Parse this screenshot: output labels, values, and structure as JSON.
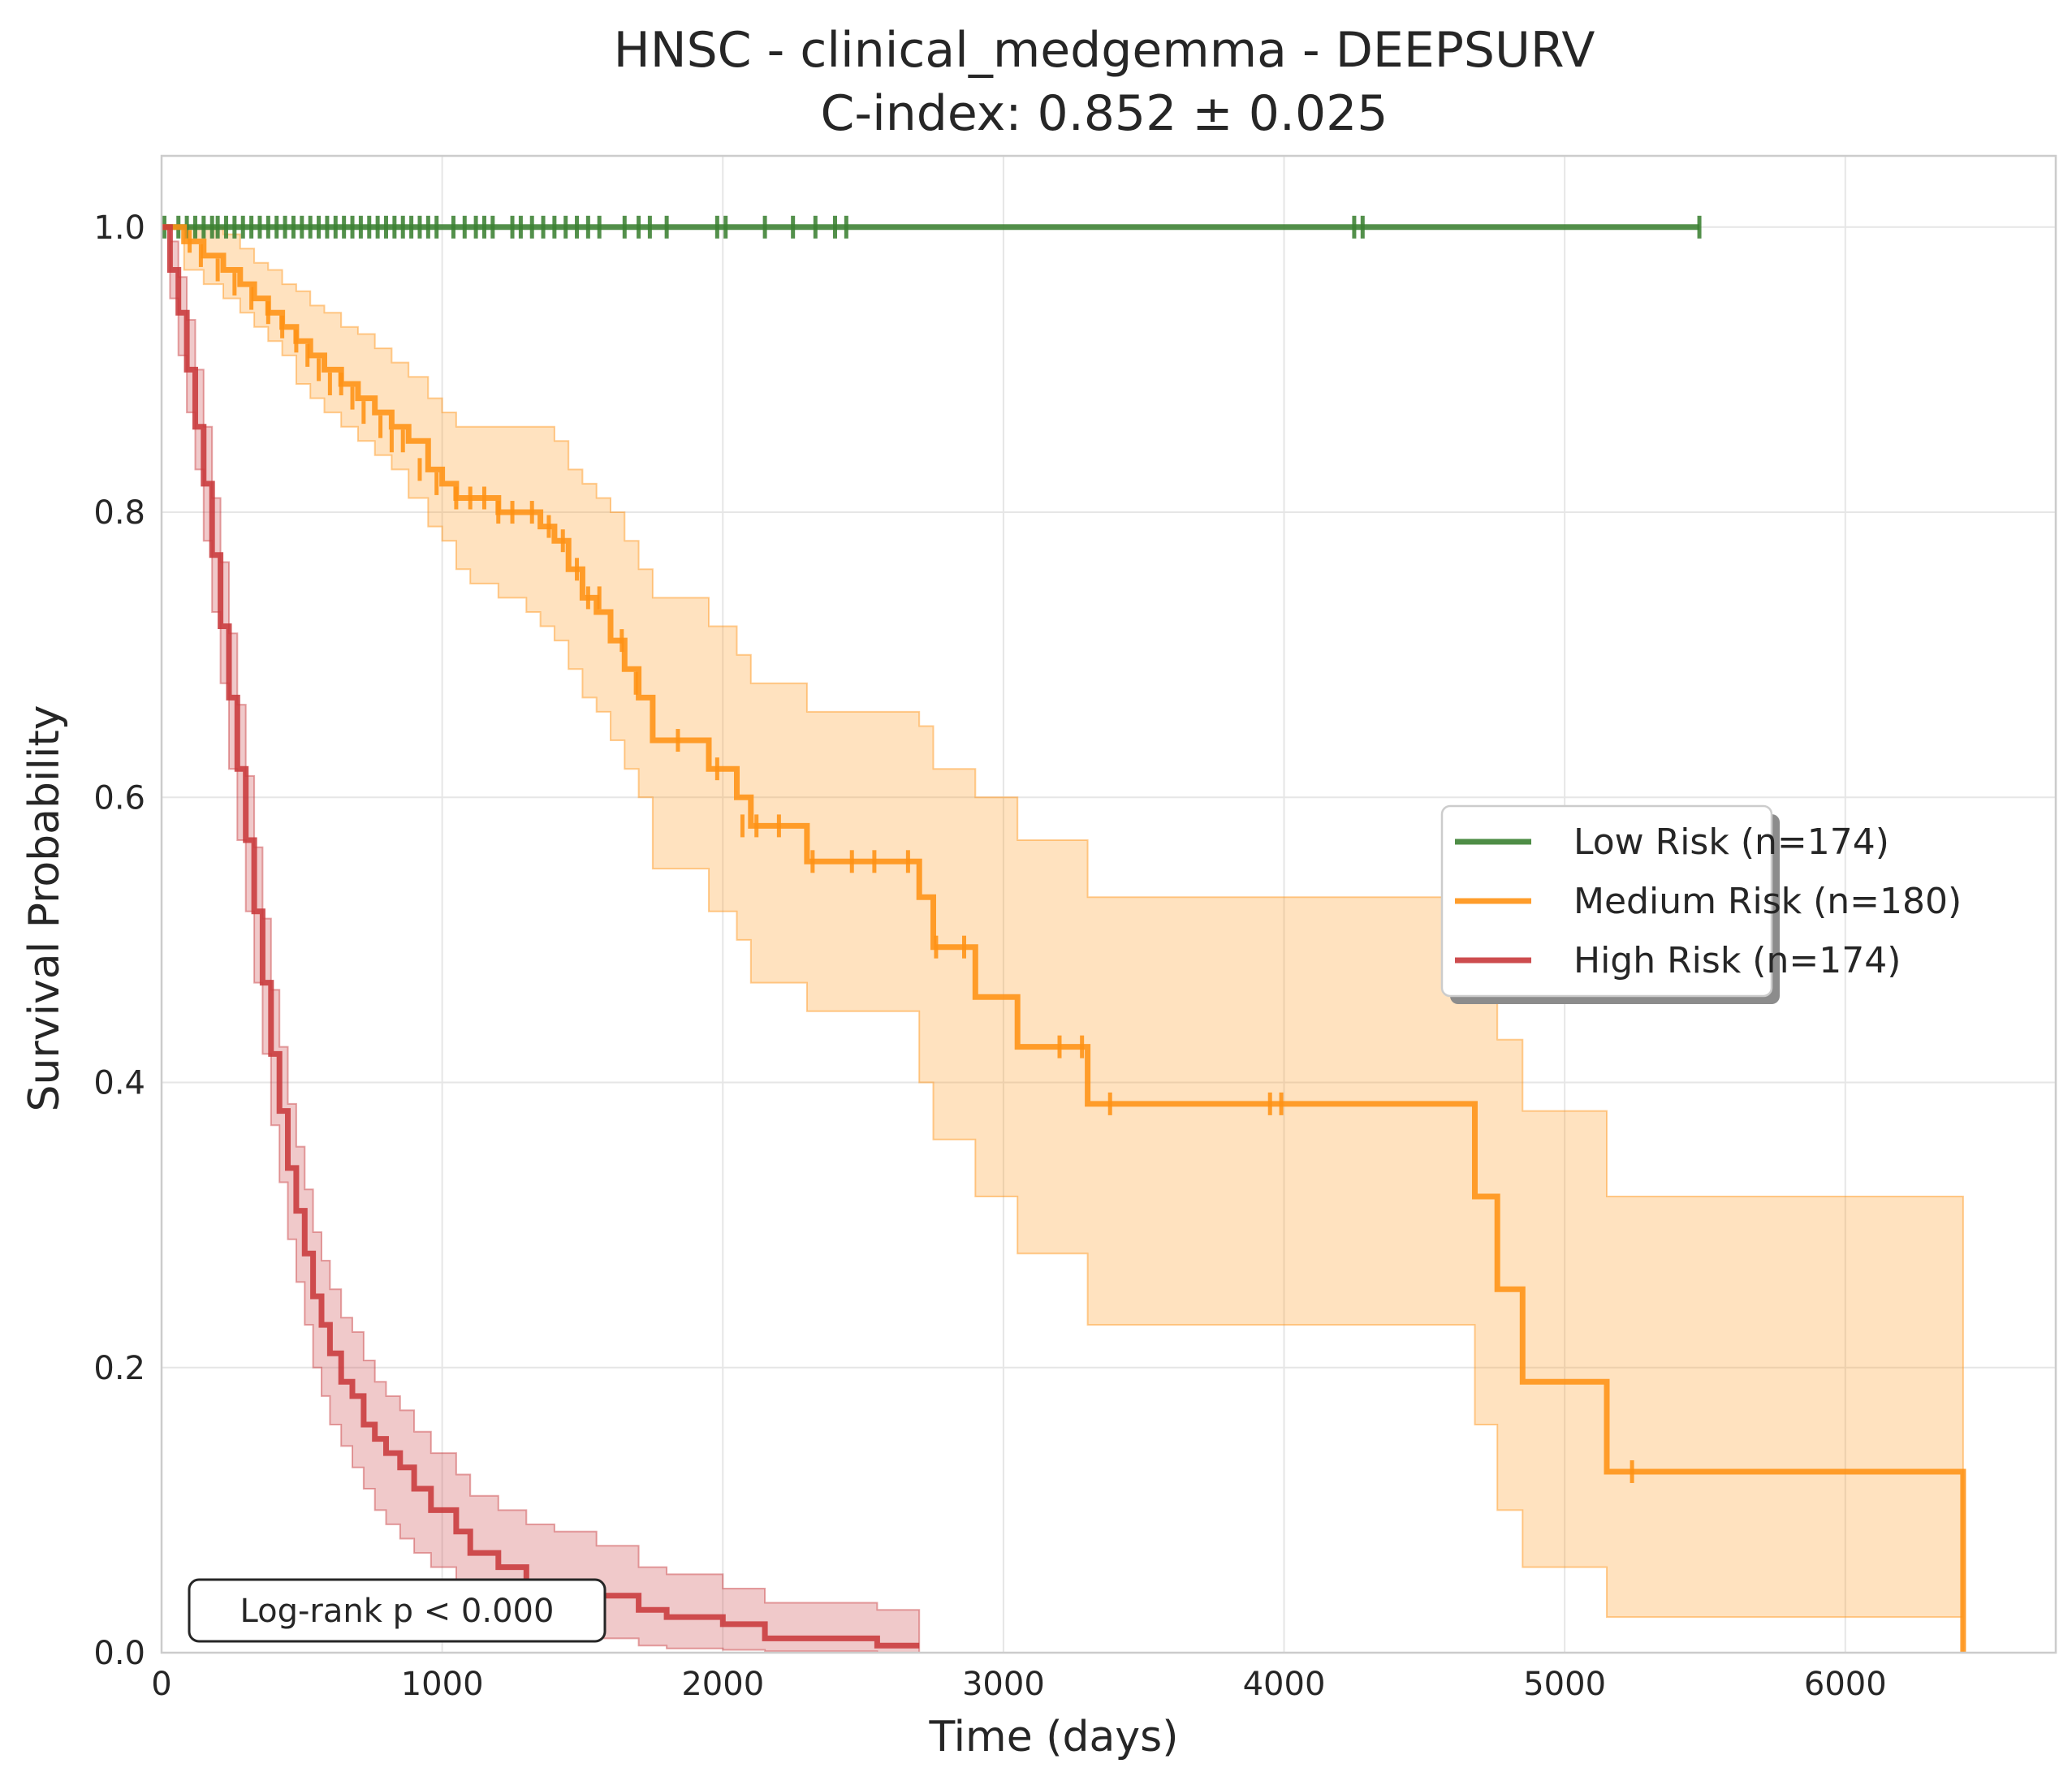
{
  "chart_data": {
    "type": "line",
    "title": "HNSC - clinical_medgemma - DEEPSURV",
    "subtitle": "C-index: 0.852 ± 0.025",
    "xlabel": "Time (days)",
    "ylabel": "Survival Probability",
    "xlim": [
      0,
      6750
    ],
    "ylim": [
      0.0,
      1.05
    ],
    "xticks": [
      0,
      1000,
      2000,
      3000,
      4000,
      5000,
      6000
    ],
    "yticks": [
      0.0,
      0.2,
      0.4,
      0.6,
      0.8,
      1.0
    ],
    "xtick_labels": [
      "0",
      "1000",
      "2000",
      "3000",
      "4000",
      "5000",
      "6000"
    ],
    "ytick_labels": [
      "0.0",
      "0.2",
      "0.4",
      "0.6",
      "0.8",
      "1.0"
    ],
    "grid": true,
    "legend_position": "center-right",
    "annotation": "Log-rank p < 0.000",
    "series": [
      {
        "name": "Low Risk (n=174)",
        "color": "#3b8132",
        "x": [
          0,
          5480
        ],
        "y": [
          1.0,
          1.0
        ],
        "ci_lower": [
          1.0,
          1.0
        ],
        "ci_upper": [
          1.0,
          1.0
        ],
        "censor_x": [
          10,
          60,
          90,
          120,
          150,
          180,
          200,
          230,
          260,
          290,
          320,
          350,
          380,
          410,
          440,
          470,
          500,
          530,
          560,
          590,
          620,
          650,
          680,
          710,
          740,
          770,
          800,
          830,
          860,
          890,
          920,
          950,
          980,
          1040,
          1080,
          1120,
          1150,
          1180,
          1250,
          1280,
          1320,
          1360,
          1400,
          1440,
          1480,
          1520,
          1560,
          1650,
          1700,
          1740,
          1800,
          1980,
          2010,
          2150,
          2250,
          2330,
          2400,
          2440,
          4250,
          4280,
          5480
        ],
        "censor_y": 1.0
      },
      {
        "name": "Medium Risk (n=180)",
        "color": "#ff9214",
        "x": [
          0,
          80,
          150,
          220,
          280,
          330,
          380,
          430,
          480,
          530,
          580,
          640,
          700,
          760,
          820,
          880,
          950,
          1000,
          1050,
          1100,
          1200,
          1300,
          1350,
          1400,
          1450,
          1500,
          1550,
          1600,
          1650,
          1700,
          1750,
          1950,
          2050,
          2100,
          2300,
          2700,
          2750,
          2900,
          3050,
          3300,
          4680,
          4760,
          4850,
          5150,
          6420
        ],
        "y": [
          1.0,
          0.99,
          0.98,
          0.97,
          0.96,
          0.95,
          0.94,
          0.93,
          0.92,
          0.91,
          0.9,
          0.89,
          0.88,
          0.87,
          0.86,
          0.85,
          0.83,
          0.82,
          0.81,
          0.81,
          0.8,
          0.8,
          0.79,
          0.78,
          0.76,
          0.74,
          0.73,
          0.71,
          0.69,
          0.67,
          0.64,
          0.62,
          0.6,
          0.58,
          0.555,
          0.53,
          0.495,
          0.46,
          0.425,
          0.385,
          0.32,
          0.255,
          0.19,
          0.127,
          0.0
        ],
        "ci_lower": [
          1.0,
          0.97,
          0.96,
          0.95,
          0.94,
          0.93,
          0.92,
          0.91,
          0.89,
          0.88,
          0.87,
          0.86,
          0.85,
          0.84,
          0.83,
          0.81,
          0.79,
          0.78,
          0.76,
          0.75,
          0.74,
          0.73,
          0.72,
          0.71,
          0.69,
          0.67,
          0.66,
          0.64,
          0.62,
          0.6,
          0.55,
          0.52,
          0.5,
          0.47,
          0.45,
          0.4,
          0.36,
          0.32,
          0.28,
          0.23,
          0.16,
          0.1,
          0.06,
          0.025,
          0.0
        ],
        "ci_upper": [
          1.0,
          1.0,
          1.0,
          0.995,
          0.985,
          0.975,
          0.97,
          0.96,
          0.955,
          0.945,
          0.94,
          0.93,
          0.925,
          0.915,
          0.905,
          0.895,
          0.88,
          0.87,
          0.86,
          0.86,
          0.86,
          0.86,
          0.86,
          0.85,
          0.83,
          0.82,
          0.81,
          0.8,
          0.78,
          0.76,
          0.74,
          0.72,
          0.7,
          0.68,
          0.66,
          0.65,
          0.62,
          0.6,
          0.57,
          0.53,
          0.49,
          0.43,
          0.38,
          0.32,
          0.0
        ],
        "censor_x": [
          100,
          140,
          200,
          260,
          320,
          380,
          430,
          480,
          520,
          560,
          600,
          640,
          680,
          720,
          780,
          820,
          860,
          920,
          980,
          1050,
          1100,
          1150,
          1200,
          1250,
          1320,
          1380,
          1430,
          1480,
          1520,
          1560,
          1640,
          1690,
          1840,
          1980,
          2070,
          2120,
          2200,
          2320,
          2460,
          2540,
          2660,
          2760,
          2860,
          3200,
          3280,
          3380,
          3950,
          3990,
          5240
        ],
        "censor_y": [
          0.99,
          0.98,
          0.97,
          0.96,
          0.95,
          0.94,
          0.93,
          0.92,
          0.91,
          0.9,
          0.89,
          0.89,
          0.88,
          0.87,
          0.86,
          0.85,
          0.85,
          0.83,
          0.82,
          0.81,
          0.81,
          0.81,
          0.8,
          0.8,
          0.8,
          0.79,
          0.78,
          0.76,
          0.74,
          0.74,
          0.71,
          0.68,
          0.64,
          0.62,
          0.58,
          0.58,
          0.58,
          0.555,
          0.555,
          0.555,
          0.555,
          0.495,
          0.495,
          0.425,
          0.425,
          0.385,
          0.385,
          0.385,
          0.127
        ]
      },
      {
        "name": "High Risk (n=174)",
        "color": "#c8393b",
        "x": [
          0,
          30,
          60,
          90,
          120,
          150,
          180,
          210,
          240,
          270,
          300,
          330,
          360,
          390,
          420,
          450,
          480,
          510,
          540,
          570,
          600,
          640,
          680,
          720,
          760,
          800,
          850,
          900,
          960,
          1050,
          1100,
          1200,
          1300,
          1400,
          1550,
          1700,
          1800,
          2000,
          2150,
          2550,
          2700
        ],
        "y": [
          1.0,
          0.97,
          0.94,
          0.9,
          0.86,
          0.82,
          0.77,
          0.72,
          0.67,
          0.62,
          0.57,
          0.52,
          0.47,
          0.42,
          0.38,
          0.34,
          0.31,
          0.28,
          0.25,
          0.23,
          0.21,
          0.19,
          0.18,
          0.16,
          0.15,
          0.14,
          0.13,
          0.115,
          0.1,
          0.085,
          0.07,
          0.06,
          0.05,
          0.045,
          0.04,
          0.03,
          0.025,
          0.02,
          0.01,
          0.005,
          0.005
        ],
        "ci_lower": [
          1.0,
          0.95,
          0.91,
          0.87,
          0.83,
          0.78,
          0.73,
          0.68,
          0.62,
          0.57,
          0.52,
          0.47,
          0.42,
          0.37,
          0.33,
          0.29,
          0.26,
          0.23,
          0.2,
          0.18,
          0.16,
          0.145,
          0.13,
          0.115,
          0.1,
          0.09,
          0.08,
          0.07,
          0.06,
          0.045,
          0.035,
          0.03,
          0.02,
          0.015,
          0.01,
          0.005,
          0.003,
          0.002,
          0.001,
          0.0,
          0.0
        ],
        "ci_upper": [
          1.0,
          0.99,
          0.965,
          0.935,
          0.9,
          0.86,
          0.81,
          0.765,
          0.715,
          0.665,
          0.615,
          0.565,
          0.515,
          0.465,
          0.425,
          0.385,
          0.355,
          0.325,
          0.295,
          0.275,
          0.255,
          0.235,
          0.225,
          0.205,
          0.19,
          0.18,
          0.17,
          0.155,
          0.14,
          0.125,
          0.11,
          0.1,
          0.09,
          0.085,
          0.075,
          0.06,
          0.055,
          0.045,
          0.035,
          0.03,
          0.03
        ],
        "censor_x": [],
        "censor_y": []
      }
    ]
  }
}
